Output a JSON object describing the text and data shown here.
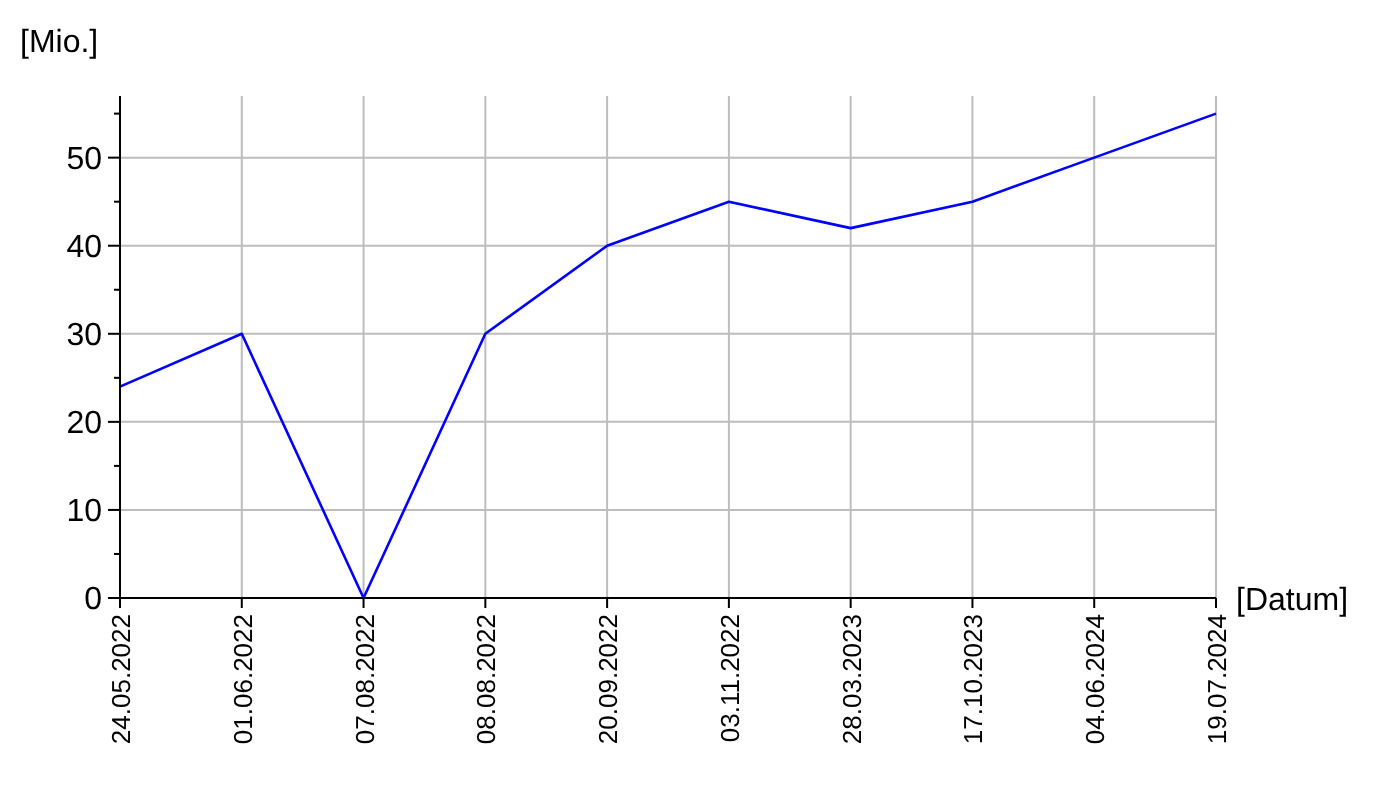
{
  "chart_data": {
    "type": "line",
    "ylabel": "[Mio.]",
    "xlabel": "[Datum]",
    "categories": [
      "24.05.2022",
      "01.06.2022",
      "07.08.2022",
      "08.08.2022",
      "20.09.2022",
      "03.11.2022",
      "28.03.2023",
      "17.10.2023",
      "04.06.2024",
      "19.07.2024"
    ],
    "series": [
      {
        "color": "#0000ff",
        "values": [
          24,
          30,
          0,
          30,
          40,
          45,
          42,
          45,
          50,
          55
        ]
      }
    ],
    "ylim": [
      0,
      57
    ],
    "yticks": [
      0,
      {
        "value": 5,
        "label": null
      },
      10,
      {
        "value": 15,
        "label": null
      },
      20,
      {
        "value": 25,
        "label": null
      },
      30,
      {
        "value": 35,
        "label": null
      },
      40,
      {
        "value": 45,
        "label": null
      },
      50,
      {
        "value": 55,
        "label": null
      }
    ],
    "grid": true,
    "marker": "none",
    "line_style": "solid"
  }
}
